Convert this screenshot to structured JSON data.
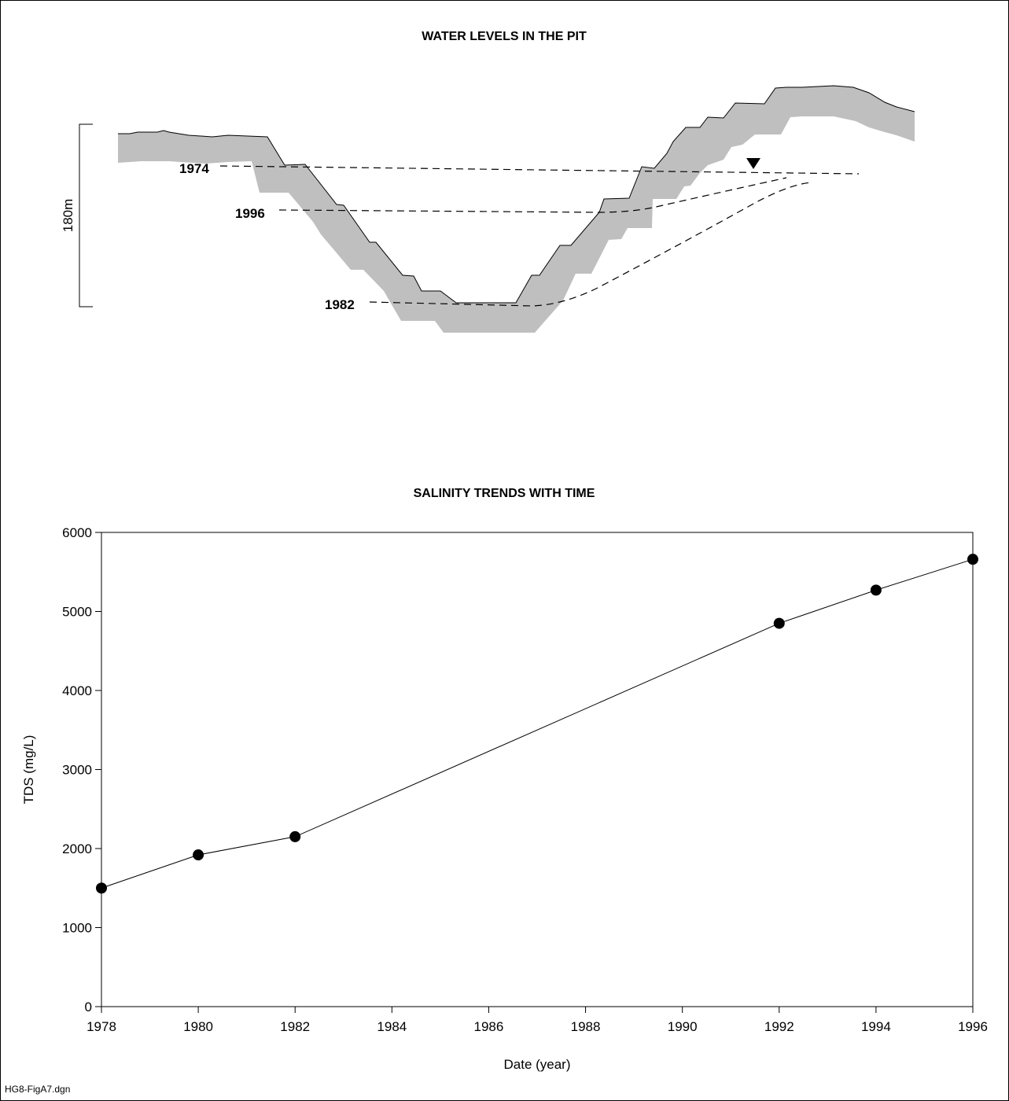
{
  "figure_id": "HG8-FigA7.dgn",
  "pit_diagram": {
    "title": "WATER LEVELS IN THE PIT",
    "scale_label": "180m",
    "water_level_labels": [
      "1974",
      "1996",
      "1982"
    ]
  },
  "chart_data": {
    "type": "line",
    "title": "SALINITY TRENDS WITH TIME",
    "xlabel": "Date (year)",
    "ylabel": "TDS (mg/L)",
    "xlim": [
      1978,
      1996
    ],
    "ylim": [
      0,
      6000
    ],
    "xticks": [
      1978,
      1980,
      1982,
      1984,
      1986,
      1988,
      1990,
      1992,
      1994,
      1996
    ],
    "yticks": [
      0,
      1000,
      2000,
      3000,
      4000,
      5000,
      6000
    ],
    "marker": "filled-circle",
    "grid": false,
    "series": [
      {
        "x": [
          1978,
          1980,
          1982,
          1992,
          1994,
          1996
        ],
        "y": [
          1500,
          1920,
          2150,
          4850,
          5270,
          5660
        ]
      }
    ]
  }
}
